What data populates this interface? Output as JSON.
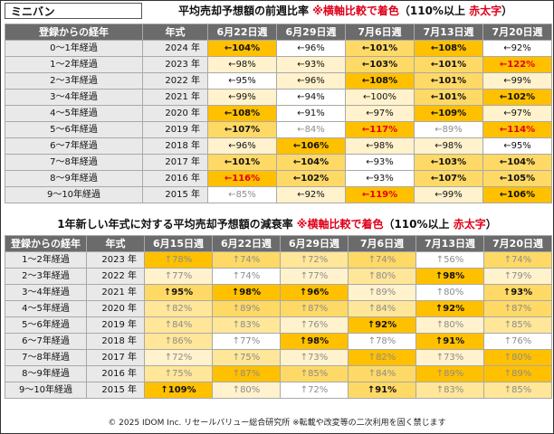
{
  "header": {
    "label": "ミニバン",
    "title1_main": "平均売却予想額の前週比率",
    "title1_note": "※横軸比較で着色",
    "title1_rule": "（110%以上",
    "title1_rule_red": "赤太字",
    "title1_rule_end": "）"
  },
  "table1": {
    "col_age": "登録からの経年",
    "col_year": "年式",
    "weeks": [
      "6月22日週",
      "6月29日週",
      "7月6日週",
      "7月13日週",
      "7月20日週"
    ],
    "rows": [
      {
        "age": "0～1年経過",
        "year": "2024 年",
        "cells": [
          {
            "t": "←104%",
            "b": "b4",
            "c": "cb"
          },
          {
            "t": "←96%",
            "b": "b0",
            "c": "cn"
          },
          {
            "t": "←101%",
            "b": "b3",
            "c": "cb"
          },
          {
            "t": "←108%",
            "b": "b4",
            "c": "cb"
          },
          {
            "t": "←92%",
            "b": "b0",
            "c": "cn"
          }
        ]
      },
      {
        "age": "1～2年経過",
        "year": "2023 年",
        "cells": [
          {
            "t": "←98%",
            "b": "b1",
            "c": "cn"
          },
          {
            "t": "←93%",
            "b": "b1",
            "c": "cn"
          },
          {
            "t": "←103%",
            "b": "b3",
            "c": "cb"
          },
          {
            "t": "←101%",
            "b": "b3",
            "c": "cb"
          },
          {
            "t": "←122%",
            "b": "b4",
            "c": "cr"
          }
        ]
      },
      {
        "age": "2～3年経過",
        "year": "2022 年",
        "cells": [
          {
            "t": "←95%",
            "b": "b0",
            "c": "cn"
          },
          {
            "t": "←96%",
            "b": "b1",
            "c": "cn"
          },
          {
            "t": "←108%",
            "b": "b4",
            "c": "cb"
          },
          {
            "t": "←101%",
            "b": "b3",
            "c": "cb"
          },
          {
            "t": "←99%",
            "b": "b1",
            "c": "cn"
          }
        ]
      },
      {
        "age": "3～4年経過",
        "year": "2021 年",
        "cells": [
          {
            "t": "←99%",
            "b": "b1",
            "c": "cn"
          },
          {
            "t": "←94%",
            "b": "b0",
            "c": "cn"
          },
          {
            "t": "←100%",
            "b": "b1",
            "c": "cn"
          },
          {
            "t": "←101%",
            "b": "b3",
            "c": "cb"
          },
          {
            "t": "←102%",
            "b": "b4",
            "c": "cb"
          }
        ]
      },
      {
        "age": "4～5年経過",
        "year": "2020 年",
        "cells": [
          {
            "t": "←108%",
            "b": "b4",
            "c": "cb"
          },
          {
            "t": "←91%",
            "b": "b0",
            "c": "cn"
          },
          {
            "t": "←97%",
            "b": "b1",
            "c": "cn"
          },
          {
            "t": "←109%",
            "b": "b4",
            "c": "cb"
          },
          {
            "t": "←97%",
            "b": "b1",
            "c": "cn"
          }
        ]
      },
      {
        "age": "5～6年経過",
        "year": "2019 年",
        "cells": [
          {
            "t": "←107%",
            "b": "b3",
            "c": "cb"
          },
          {
            "t": "←84%",
            "b": "b0",
            "c": "cg"
          },
          {
            "t": "←117%",
            "b": "b4",
            "c": "cr"
          },
          {
            "t": "←89%",
            "b": "b0",
            "c": "cg"
          },
          {
            "t": "←114%",
            "b": "b4",
            "c": "cr"
          }
        ]
      },
      {
        "age": "6～7年経過",
        "year": "2018 年",
        "cells": [
          {
            "t": "←96%",
            "b": "b1",
            "c": "cn"
          },
          {
            "t": "←106%",
            "b": "b4",
            "c": "cb"
          },
          {
            "t": "←98%",
            "b": "b1",
            "c": "cn"
          },
          {
            "t": "←98%",
            "b": "b1",
            "c": "cn"
          },
          {
            "t": "←95%",
            "b": "b0",
            "c": "cn"
          }
        ]
      },
      {
        "age": "7～8年経過",
        "year": "2017 年",
        "cells": [
          {
            "t": "←101%",
            "b": "b3",
            "c": "cb"
          },
          {
            "t": "←104%",
            "b": "b3",
            "c": "cb"
          },
          {
            "t": "←93%",
            "b": "b0",
            "c": "cn"
          },
          {
            "t": "←103%",
            "b": "b3",
            "c": "cb"
          },
          {
            "t": "←104%",
            "b": "b3",
            "c": "cb"
          }
        ]
      },
      {
        "age": "8～9年経過",
        "year": "2016 年",
        "cells": [
          {
            "t": "←116%",
            "b": "b4",
            "c": "cr"
          },
          {
            "t": "←102%",
            "b": "b3",
            "c": "cb"
          },
          {
            "t": "←93%",
            "b": "b0",
            "c": "cn"
          },
          {
            "t": "←107%",
            "b": "b3",
            "c": "cb"
          },
          {
            "t": "←105%",
            "b": "b3",
            "c": "cb"
          }
        ]
      },
      {
        "age": "9～10年経過",
        "year": "2015 年",
        "cells": [
          {
            "t": "←85%",
            "b": "b0",
            "c": "cg"
          },
          {
            "t": "←92%",
            "b": "b1",
            "c": "cn"
          },
          {
            "t": "←119%",
            "b": "b4",
            "c": "cr"
          },
          {
            "t": "←99%",
            "b": "b1",
            "c": "cn"
          },
          {
            "t": "←106%",
            "b": "b4",
            "c": "cb"
          }
        ]
      }
    ]
  },
  "title2": {
    "main": "1年新しい年式に対する平均売却予想額の減衰率",
    "note": "※横軸比較で着色",
    "rule": "（110%以上",
    "rule_red": "赤太字",
    "rule_end": "）"
  },
  "table2": {
    "col_age": "登録からの経年",
    "col_year": "年式",
    "weeks": [
      "6月15日週",
      "6月22日週",
      "6月29日週",
      "7月6日週",
      "7月13日週",
      "7月20日週"
    ],
    "rows": [
      {
        "age": "1～2年経過",
        "year": "2023 年",
        "cells": [
          {
            "t": "↑78%",
            "b": "b4",
            "c": "cg"
          },
          {
            "t": "↑74%",
            "b": "b3",
            "c": "cg"
          },
          {
            "t": "↑72%",
            "b": "b2",
            "c": "cg"
          },
          {
            "t": "↑74%",
            "b": "b3",
            "c": "cg"
          },
          {
            "t": "↑56%",
            "b": "b0",
            "c": "cg"
          },
          {
            "t": "↑74%",
            "b": "b3",
            "c": "cg"
          }
        ]
      },
      {
        "age": "2～3年経過",
        "year": "2022 年",
        "cells": [
          {
            "t": "↑77%",
            "b": "b1",
            "c": "cg"
          },
          {
            "t": "↑74%",
            "b": "b0",
            "c": "cg"
          },
          {
            "t": "↑77%",
            "b": "b1",
            "c": "cg"
          },
          {
            "t": "↑80%",
            "b": "b2",
            "c": "cg"
          },
          {
            "t": "↑98%",
            "b": "b4",
            "c": "cb"
          },
          {
            "t": "↑79%",
            "b": "b1",
            "c": "cg"
          }
        ]
      },
      {
        "age": "3～4年経過",
        "year": "2021 年",
        "cells": [
          {
            "t": "↑95%",
            "b": "b3",
            "c": "cb"
          },
          {
            "t": "↑98%",
            "b": "b4",
            "c": "cb"
          },
          {
            "t": "↑96%",
            "b": "b4",
            "c": "cb"
          },
          {
            "t": "↑89%",
            "b": "b1",
            "c": "cg"
          },
          {
            "t": "↑80%",
            "b": "b0",
            "c": "cg"
          },
          {
            "t": "↑93%",
            "b": "b3",
            "c": "cb"
          }
        ]
      },
      {
        "age": "4～5年経過",
        "year": "2020 年",
        "cells": [
          {
            "t": "↑82%",
            "b": "b2",
            "c": "cg"
          },
          {
            "t": "↑89%",
            "b": "b3",
            "c": "cg"
          },
          {
            "t": "↑87%",
            "b": "b3",
            "c": "cg"
          },
          {
            "t": "↑84%",
            "b": "b2",
            "c": "cg"
          },
          {
            "t": "↑92%",
            "b": "b4",
            "c": "cb"
          },
          {
            "t": "↑87%",
            "b": "b3",
            "c": "cg"
          }
        ]
      },
      {
        "age": "5～6年経過",
        "year": "2019 年",
        "cells": [
          {
            "t": "↑84%",
            "b": "b2",
            "c": "cg"
          },
          {
            "t": "↑83%",
            "b": "b2",
            "c": "cg"
          },
          {
            "t": "↑76%",
            "b": "b1",
            "c": "cg"
          },
          {
            "t": "↑92%",
            "b": "b4",
            "c": "cb"
          },
          {
            "t": "↑80%",
            "b": "b1",
            "c": "cg"
          },
          {
            "t": "↑85%",
            "b": "b2",
            "c": "cg"
          }
        ]
      },
      {
        "age": "6～7年経過",
        "year": "2018 年",
        "cells": [
          {
            "t": "↑86%",
            "b": "b2",
            "c": "cg"
          },
          {
            "t": "↑77%",
            "b": "b0",
            "c": "cg"
          },
          {
            "t": "↑98%",
            "b": "b4",
            "c": "cb"
          },
          {
            "t": "↑78%",
            "b": "b0",
            "c": "cg"
          },
          {
            "t": "↑91%",
            "b": "b4",
            "c": "cb"
          },
          {
            "t": "↑76%",
            "b": "b0",
            "c": "cg"
          }
        ]
      },
      {
        "age": "7～8年経過",
        "year": "2017 年",
        "cells": [
          {
            "t": "↑72%",
            "b": "b1",
            "c": "cg"
          },
          {
            "t": "↑75%",
            "b": "b2",
            "c": "cg"
          },
          {
            "t": "↑73%",
            "b": "b1",
            "c": "cg"
          },
          {
            "t": "↑82%",
            "b": "b4",
            "c": "cg"
          },
          {
            "t": "↑73%",
            "b": "b1",
            "c": "cg"
          },
          {
            "t": "↑80%",
            "b": "b4",
            "c": "cg"
          }
        ]
      },
      {
        "age": "8～9年経過",
        "year": "2016 年",
        "cells": [
          {
            "t": "↑75%",
            "b": "b2",
            "c": "cg"
          },
          {
            "t": "↑87%",
            "b": "b4",
            "c": "cg"
          },
          {
            "t": "↑85%",
            "b": "b3",
            "c": "cg"
          },
          {
            "t": "↑84%",
            "b": "b3",
            "c": "cg"
          },
          {
            "t": "↑89%",
            "b": "b4",
            "c": "cg"
          },
          {
            "t": "↑89%",
            "b": "b4",
            "c": "cg"
          }
        ]
      },
      {
        "age": "9～10年経過",
        "year": "2015 年",
        "cells": [
          {
            "t": "↑109%",
            "b": "b4",
            "c": "cb"
          },
          {
            "t": "↑80%",
            "b": "b1",
            "c": "cg"
          },
          {
            "t": "↑72%",
            "b": "b0",
            "c": "cg"
          },
          {
            "t": "↑91%",
            "b": "b3",
            "c": "cb"
          },
          {
            "t": "↑83%",
            "b": "b2",
            "c": "cg"
          },
          {
            "t": "↑85%",
            "b": "b2",
            "c": "cg"
          }
        ]
      }
    ]
  },
  "footer": "© 2025 IDOM Inc. リセールバリュー総合研究所 ※転載や改変等の二次利用を固く禁じます"
}
